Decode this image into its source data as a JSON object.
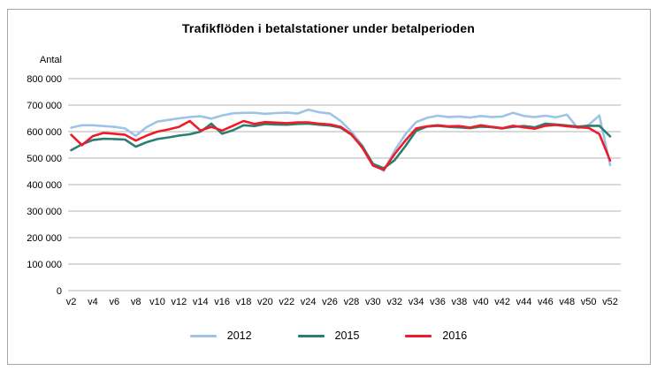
{
  "chart_data": {
    "type": "line",
    "title": "Trafikflöden i betalstationer under betalperioden",
    "ylabel": "Antal",
    "xlabel": "",
    "ylim": [
      0,
      800000
    ],
    "grid": "horizontal",
    "legend_position": "bottom-center",
    "yticks": [
      {
        "value": 800000,
        "label": "800 000"
      },
      {
        "value": 700000,
        "label": "700 000"
      },
      {
        "value": 600000,
        "label": "600 000"
      },
      {
        "value": 500000,
        "label": "500 000"
      },
      {
        "value": 400000,
        "label": "400 000"
      },
      {
        "value": 300000,
        "label": "300 000"
      },
      {
        "value": 200000,
        "label": "200 000"
      },
      {
        "value": 100000,
        "label": "100 000"
      },
      {
        "value": 0,
        "label": "0"
      }
    ],
    "x_ticks": [
      {
        "week": 2,
        "label": "v2"
      },
      {
        "week": 4,
        "label": "v4"
      },
      {
        "week": 6,
        "label": "v6"
      },
      {
        "week": 8,
        "label": "v8"
      },
      {
        "week": 10,
        "label": "v10"
      },
      {
        "week": 12,
        "label": "v12"
      },
      {
        "week": 14,
        "label": "v14"
      },
      {
        "week": 16,
        "label": "v16"
      },
      {
        "week": 18,
        "label": "v18"
      },
      {
        "week": 20,
        "label": "v20"
      },
      {
        "week": 22,
        "label": "v22"
      },
      {
        "week": 24,
        "label": "v24"
      },
      {
        "week": 26,
        "label": "v26"
      },
      {
        "week": 28,
        "label": "v28"
      },
      {
        "week": 30,
        "label": "v30"
      },
      {
        "week": 32,
        "label": "v32"
      },
      {
        "week": 34,
        "label": "v34"
      },
      {
        "week": 36,
        "label": "v36"
      },
      {
        "week": 38,
        "label": "v38"
      },
      {
        "week": 40,
        "label": "v40"
      },
      {
        "week": 42,
        "label": "v42"
      },
      {
        "week": 44,
        "label": "v44"
      },
      {
        "week": 46,
        "label": "v46"
      },
      {
        "week": 48,
        "label": "v48"
      },
      {
        "week": 50,
        "label": "v50"
      },
      {
        "week": 52,
        "label": "v52"
      }
    ],
    "weeks": [
      2,
      3,
      4,
      5,
      6,
      7,
      8,
      9,
      10,
      11,
      12,
      13,
      14,
      15,
      16,
      17,
      18,
      19,
      20,
      21,
      22,
      23,
      24,
      25,
      26,
      27,
      28,
      29,
      30,
      31,
      32,
      33,
      34,
      35,
      36,
      37,
      38,
      39,
      40,
      41,
      42,
      43,
      44,
      45,
      46,
      47,
      48,
      49,
      50,
      51,
      52
    ],
    "series": [
      {
        "name": "2012",
        "color": "#9dc3e6",
        "values": [
          615000,
          624000,
          624000,
          621000,
          618000,
          612000,
          584000,
          617000,
          638000,
          644000,
          650000,
          655000,
          658000,
          649000,
          661000,
          669000,
          671000,
          671000,
          667000,
          670000,
          672000,
          668000,
          683000,
          673000,
          668000,
          640000,
          600000,
          548000,
          478000,
          452000,
          528000,
          590000,
          636000,
          652000,
          660000,
          655000,
          657000,
          653000,
          659000,
          655000,
          657000,
          671000,
          659000,
          655000,
          660000,
          654000,
          664000,
          613000,
          625000,
          661000,
          474000
        ]
      },
      {
        "name": "2015",
        "color": "#2b7e72",
        "values": [
          530000,
          552000,
          568000,
          573000,
          572000,
          570000,
          543000,
          560000,
          572000,
          578000,
          585000,
          590000,
          600000,
          630000,
          592000,
          605000,
          624000,
          621000,
          629000,
          627000,
          626000,
          629000,
          630000,
          626000,
          623000,
          615000,
          588000,
          545000,
          478000,
          462000,
          492000,
          545000,
          603000,
          619000,
          622000,
          618000,
          616000,
          613000,
          619000,
          617000,
          612000,
          618000,
          621000,
          616000,
          630000,
          627000,
          623000,
          619000,
          622000,
          622000,
          582000
        ]
      },
      {
        "name": "2016",
        "color": "#ee1c29",
        "values": [
          588000,
          549000,
          583000,
          595000,
          592000,
          588000,
          566000,
          585000,
          600000,
          608000,
          618000,
          640000,
          604000,
          618000,
          604000,
          622000,
          640000,
          629000,
          636000,
          634000,
          632000,
          635000,
          635000,
          630000,
          627000,
          618000,
          590000,
          540000,
          472000,
          456000,
          515000,
          566000,
          612000,
          620000,
          624000,
          620000,
          621000,
          615000,
          624000,
          618000,
          613000,
          622000,
          616000,
          611000,
          622000,
          625000,
          620000,
          617000,
          614000,
          591000,
          491000
        ]
      }
    ],
    "style": {
      "gridline_color": "#b3b3b3",
      "frame_border_color": "#a6a6a6",
      "text_color": "#000000",
      "line_width": 2.6
    }
  }
}
